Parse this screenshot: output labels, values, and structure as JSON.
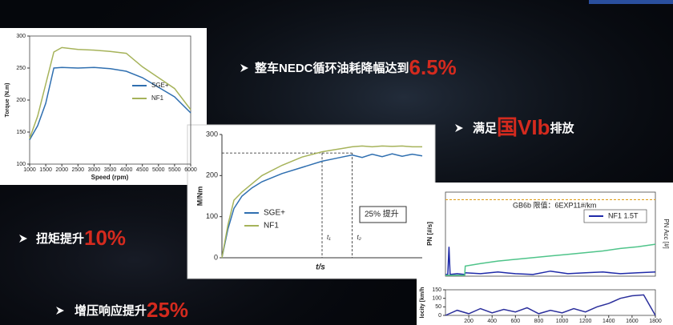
{
  "slide": {
    "bullets": [
      {
        "prefix": "整车NEDC循环油耗降幅达到",
        "highlight": "6.5%"
      },
      {
        "prefix": "满足",
        "highlight": "国VIb",
        "suffix": "排放"
      },
      {
        "prefix": "扭矩提升",
        "highlight": "10%"
      },
      {
        "prefix": "增压响应提升",
        "highlight": "25%"
      }
    ]
  },
  "chart_data": [
    {
      "type": "line",
      "xlabel": "Speed (rpm)",
      "ylabel": "Torque (N.m)",
      "x": [
        1000,
        1250,
        1500,
        1750,
        2000,
        2500,
        3000,
        3500,
        4000,
        4500,
        5000,
        5500,
        6000
      ],
      "series": [
        {
          "name": "SGE+",
          "color": "#2f6fb0",
          "values": [
            138,
            160,
            195,
            250,
            251,
            250,
            251,
            249,
            245,
            235,
            220,
            205,
            180
          ]
        },
        {
          "name": "NF1",
          "color": "#a6b35a",
          "values": [
            140,
            175,
            225,
            275,
            282,
            279,
            278,
            276,
            273,
            252,
            235,
            218,
            185
          ]
        }
      ],
      "xlim": [
        1000,
        6000
      ],
      "xticks": [
        1000,
        1500,
        2000,
        2500,
        3000,
        3500,
        4000,
        4500,
        5000,
        5500,
        6000
      ],
      "ylim": [
        100,
        300
      ],
      "yticks": [
        100,
        150,
        200,
        250,
        300
      ]
    },
    {
      "type": "line",
      "xlabel": "t/s",
      "ylabel": "M/Nm",
      "x": [
        0,
        0.3,
        0.6,
        1,
        1.5,
        2,
        3,
        4,
        5,
        5.5,
        6,
        6.5,
        7,
        7.5,
        8,
        8.5,
        9,
        9.5,
        10
      ],
      "series": [
        {
          "name": "SGE+",
          "color": "#2f6fb0",
          "values": [
            0,
            70,
            120,
            150,
            170,
            185,
            205,
            220,
            235,
            240,
            245,
            250,
            244,
            252,
            246,
            253,
            247,
            252,
            248
          ]
        },
        {
          "name": "NF1",
          "color": "#a6b35a",
          "values": [
            0,
            80,
            140,
            160,
            180,
            200,
            225,
            245,
            258,
            262,
            266,
            270,
            272,
            270,
            272,
            271,
            272,
            270,
            270
          ]
        }
      ],
      "xlim": [
        0,
        10
      ],
      "ylim": [
        0,
        300
      ],
      "yticks": [
        0,
        100,
        200,
        300
      ],
      "hline": 255,
      "vlines": [
        {
          "value": 5,
          "label": "t₁"
        },
        {
          "value": 6.5,
          "label": "t₂"
        }
      ],
      "annotation": "25% 提升"
    },
    {
      "type": "line",
      "ylabel": "PN [#/s]",
      "y2label": "PN Acc [#]",
      "x": [
        0,
        20,
        30,
        40,
        100,
        165,
        170,
        300,
        450,
        600,
        750,
        900,
        1050,
        1200,
        1350,
        1500,
        1650,
        1800
      ],
      "series": [
        {
          "name": "NF1 1.5T",
          "color": "#1f2aa8",
          "values": [
            2,
            2,
            35,
            2,
            3,
            2,
            4,
            3,
            5,
            3,
            2,
            6,
            3,
            4,
            5,
            3,
            4,
            5
          ]
        },
        {
          "color": "#4fc48a",
          "values": [
            1,
            1,
            1,
            1,
            1,
            1,
            12,
            15,
            18,
            20,
            22,
            24,
            26,
            28,
            30,
            33,
            35,
            38
          ]
        }
      ],
      "xlim": [
        0,
        1800
      ],
      "ylim": [
        0,
        100
      ],
      "hline": 91,
      "annotation": "GB6b 限值：6EXP11#/km"
    },
    {
      "type": "line",
      "ylabel": "locity [km/h",
      "x": [
        0,
        100,
        200,
        300,
        400,
        500,
        600,
        700,
        800,
        900,
        1000,
        1100,
        1200,
        1300,
        1400,
        1500,
        1600,
        1700,
        1800
      ],
      "series": [
        {
          "color": "#2b2f9c",
          "values": [
            0,
            30,
            10,
            40,
            15,
            35,
            20,
            45,
            10,
            30,
            15,
            40,
            20,
            50,
            70,
            100,
            115,
            120,
            0
          ]
        }
      ],
      "xlim": [
        0,
        1800
      ],
      "xticks": [
        200,
        400,
        600,
        800,
        1000,
        1200,
        1400,
        1600,
        1800
      ],
      "ylim": [
        0,
        150
      ],
      "yticks": [
        0,
        50,
        100,
        150
      ]
    }
  ]
}
